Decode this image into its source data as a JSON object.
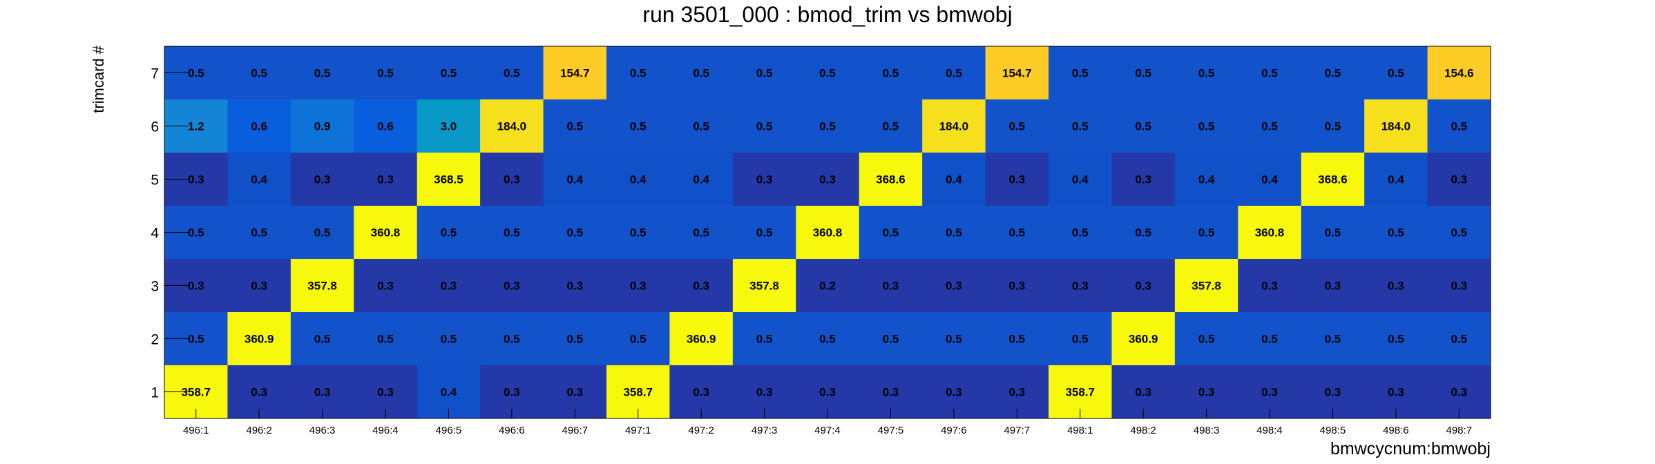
{
  "chart_data": {
    "type": "heatmap",
    "title": "run 3501_000 : bmod_trim vs bmwobj",
    "xlabel": "bmwcycnum:bmwobj",
    "ylabel": "trimcard #",
    "x_categories": [
      "496:1",
      "496:2",
      "496:3",
      "496:4",
      "496:5",
      "496:6",
      "496:7",
      "497:1",
      "497:2",
      "497:3",
      "497:4",
      "497:5",
      "497:6",
      "497:7",
      "498:1",
      "498:2",
      "498:3",
      "498:4",
      "498:5",
      "498:6",
      "498:7"
    ],
    "y_categories": [
      "1",
      "2",
      "3",
      "4",
      "5",
      "6",
      "7"
    ],
    "rows": [
      {
        "y": "7",
        "values": [
          "0.5",
          "0.5",
          "0.5",
          "0.5",
          "0.5",
          "0.5",
          "154.7",
          "0.5",
          "0.5",
          "0.5",
          "0.5",
          "0.5",
          "0.5",
          "154.7",
          "0.5",
          "0.5",
          "0.5",
          "0.5",
          "0.5",
          "0.5",
          "154.6"
        ]
      },
      {
        "y": "6",
        "values": [
          "1.2",
          "0.6",
          "0.9",
          "0.6",
          "3.0",
          "184.0",
          "0.5",
          "0.5",
          "0.5",
          "0.5",
          "0.5",
          "0.5",
          "184.0",
          "0.5",
          "0.5",
          "0.5",
          "0.5",
          "0.5",
          "0.5",
          "184.0",
          "0.5"
        ]
      },
      {
        "y": "5",
        "values": [
          "0.3",
          "0.4",
          "0.3",
          "0.3",
          "368.5",
          "0.3",
          "0.4",
          "0.4",
          "0.4",
          "0.3",
          "0.3",
          "368.6",
          "0.4",
          "0.3",
          "0.4",
          "0.3",
          "0.4",
          "0.4",
          "368.6",
          "0.4",
          "0.3"
        ]
      },
      {
        "y": "4",
        "values": [
          "0.5",
          "0.5",
          "0.5",
          "360.8",
          "0.5",
          "0.5",
          "0.5",
          "0.5",
          "0.5",
          "0.5",
          "360.8",
          "0.5",
          "0.5",
          "0.5",
          "0.5",
          "0.5",
          "0.5",
          "360.8",
          "0.5",
          "0.5",
          "0.5"
        ]
      },
      {
        "y": "3",
        "values": [
          "0.3",
          "0.3",
          "357.8",
          "0.3",
          "0.3",
          "0.3",
          "0.3",
          "0.3",
          "0.3",
          "357.8",
          "0.2",
          "0.3",
          "0.3",
          "0.3",
          "0.3",
          "0.3",
          "357.8",
          "0.3",
          "0.3",
          "0.3",
          "0.3"
        ]
      },
      {
        "y": "2",
        "values": [
          "0.5",
          "360.9",
          "0.5",
          "0.5",
          "0.5",
          "0.5",
          "0.5",
          "0.5",
          "360.9",
          "0.5",
          "0.5",
          "0.5",
          "0.5",
          "0.5",
          "0.5",
          "360.9",
          "0.5",
          "0.5",
          "0.5",
          "0.5",
          "0.5"
        ]
      },
      {
        "y": "1",
        "values": [
          "358.7",
          "0.3",
          "0.3",
          "0.3",
          "0.4",
          "0.3",
          "0.3",
          "358.7",
          "0.3",
          "0.3",
          "0.3",
          "0.3",
          "0.3",
          "0.3",
          "358.7",
          "0.3",
          "0.3",
          "0.3",
          "0.3",
          "0.3",
          "0.3"
        ]
      }
    ],
    "colorscale": "yellow-high-blue-low",
    "legend": "none",
    "grid": false
  }
}
